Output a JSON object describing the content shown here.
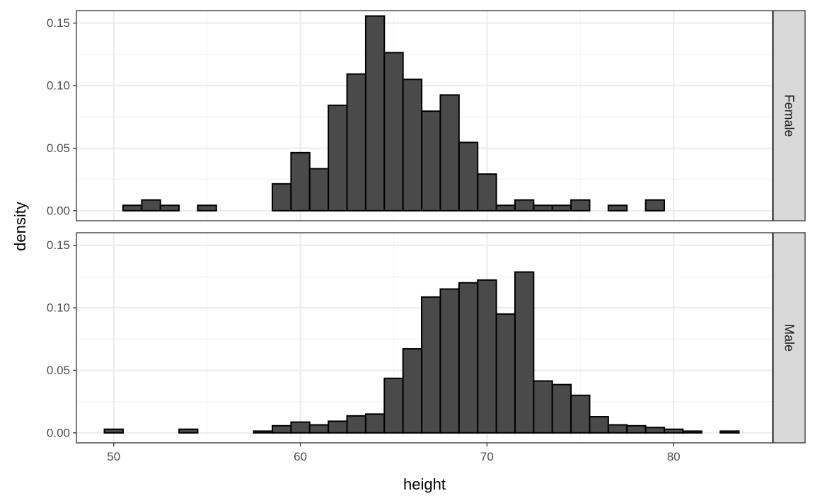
{
  "chart_data": {
    "type": "bar",
    "subtype": "faceted-histogram",
    "xlabel": "height",
    "ylabel": "density",
    "xlim": [
      48,
      85.3
    ],
    "ylim": [
      -0.008,
      0.16
    ],
    "x_ticks": [
      50,
      60,
      70,
      80
    ],
    "x_tick_labels": [
      "50",
      "60",
      "70",
      "80"
    ],
    "y_ticks": [
      0,
      0.05,
      0.1,
      0.15
    ],
    "y_tick_labels": [
      "0.00",
      "0.05",
      "0.10",
      "0.15"
    ],
    "minor_x_ticks": [
      55,
      65,
      75
    ],
    "minor_y_ticks": [
      0.025,
      0.075,
      0.125
    ],
    "bin_width": 1,
    "bin_edges_start": 49.5,
    "grid": true,
    "legend": "none",
    "theme": "bw",
    "colors": {
      "bar_fill": "#4a4a4a",
      "bar_stroke": "#000000",
      "strip_fill": "#d9d9d9",
      "grid_major": "#ebebeb",
      "grid_minor": "#f5f5f5"
    },
    "panels": [
      {
        "strip_label": "Female",
        "values": [
          0.0,
          0.0043,
          0.0086,
          0.0043,
          0.0,
          0.0043,
          0.0,
          0.0,
          0.0,
          0.0215,
          0.0464,
          0.0336,
          0.0843,
          0.1093,
          0.1557,
          0.1264,
          0.105,
          0.0796,
          0.0925,
          0.0546,
          0.0293,
          0.0043,
          0.0086,
          0.0043,
          0.0043,
          0.0086,
          0.0,
          0.0043,
          0.0,
          0.0086,
          0.0,
          0.0,
          0.0,
          0.0
        ]
      },
      {
        "strip_label": "Male",
        "values": [
          0.0029,
          0.0,
          0.0,
          0.0,
          0.0029,
          0.0,
          0.0,
          0.0,
          0.0014,
          0.0057,
          0.0086,
          0.0064,
          0.0093,
          0.0136,
          0.015,
          0.0436,
          0.0672,
          0.1086,
          0.115,
          0.12,
          0.1222,
          0.095,
          0.1286,
          0.0415,
          0.0386,
          0.03,
          0.0129,
          0.0064,
          0.0057,
          0.0043,
          0.0029,
          0.0014,
          0.0,
          0.0014
        ]
      }
    ]
  }
}
